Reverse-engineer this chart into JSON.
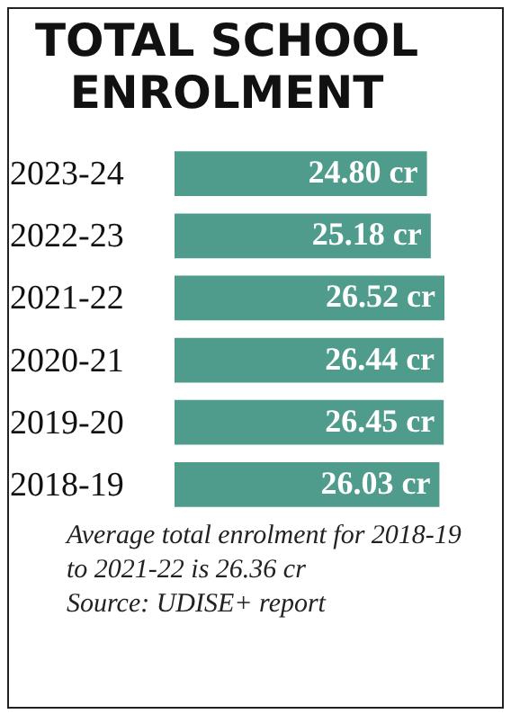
{
  "chart_data": {
    "type": "bar",
    "orientation": "horizontal",
    "title": "TOTAL SCHOOL ENROLMENT",
    "categories": [
      "2023-24",
      "2022-23",
      "2021-22",
      "2020-21",
      "2019-20",
      "2018-19"
    ],
    "values": [
      24.8,
      25.18,
      26.52,
      26.44,
      26.45,
      26.03
    ],
    "value_labels": [
      "24.80 cr",
      "25.18 cr",
      "26.52 cr",
      "26.44 cr",
      "26.45 cr",
      "26.03 cr"
    ],
    "color": "#4f9c8c",
    "annotations": [
      "Average total enrolment for 2018-19 to 2021-22 is 26.36 cr",
      "Source: UDISE+ report"
    ]
  }
}
